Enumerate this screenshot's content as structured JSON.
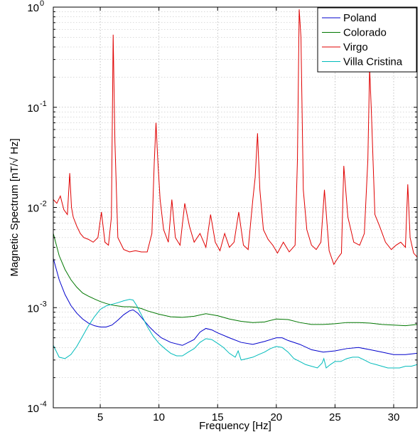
{
  "chart_data": {
    "type": "line",
    "title": "",
    "xlabel": "Frequency [Hz]",
    "ylabel": "Magnetic Spectrum [nT/√ Hz]",
    "xlim": [
      1,
      32
    ],
    "ylim": [
      0.0001,
      1
    ],
    "yscale": "log",
    "grid": true,
    "legend_position": "top-right",
    "x_ticks": [
      5,
      10,
      15,
      20,
      25,
      30
    ],
    "x_tick_labels": [
      "5",
      "10",
      "15",
      "20",
      "25",
      "30"
    ],
    "y_ticks": [
      0.0001,
      0.001,
      0.01,
      0.1,
      1
    ],
    "y_tick_labels": [
      {
        "base": "10",
        "exp": "-4"
      },
      {
        "base": "10",
        "exp": "-3"
      },
      {
        "base": "10",
        "exp": "-2"
      },
      {
        "base": "10",
        "exp": "-1"
      },
      {
        "base": "10",
        "exp": "0"
      }
    ],
    "series": [
      {
        "name": "Poland",
        "color": "#0000cc",
        "x": [
          1,
          1.5,
          2,
          2.5,
          3,
          3.5,
          4,
          4.5,
          5,
          5.5,
          6,
          6.5,
          7,
          7.5,
          7.8,
          8.2,
          8.7,
          9.2,
          9.7,
          10.2,
          11,
          12,
          13,
          13.5,
          14,
          14.5,
          15,
          16,
          17,
          18,
          19,
          20,
          20.5,
          21,
          22,
          23,
          24,
          25,
          26,
          27,
          28,
          29,
          30,
          31,
          32
        ],
        "y": [
          0.0031,
          0.0019,
          0.00135,
          0.00105,
          0.00088,
          0.00077,
          0.0007,
          0.00066,
          0.00064,
          0.00064,
          0.00067,
          0.00075,
          0.00085,
          0.00093,
          0.00095,
          0.00088,
          0.00075,
          0.00064,
          0.00056,
          0.0005,
          0.00045,
          0.00042,
          0.00048,
          0.00057,
          0.00062,
          0.0006,
          0.00056,
          0.0005,
          0.00045,
          0.00043,
          0.00046,
          0.0005,
          0.0005,
          0.00047,
          0.00043,
          0.00038,
          0.00036,
          0.00037,
          0.00039,
          0.0004,
          0.00038,
          0.00036,
          0.00034,
          0.00034,
          0.00035
        ]
      },
      {
        "name": "Colorado",
        "color": "#007700",
        "x": [
          1,
          1.5,
          2,
          2.5,
          3,
          3.5,
          4,
          4.5,
          5,
          5.5,
          6,
          6.5,
          7,
          7.5,
          8,
          8.5,
          9,
          10,
          11,
          12,
          13,
          14,
          15,
          16,
          17,
          18,
          19,
          20,
          21,
          22,
          23,
          24,
          25,
          26,
          27,
          28,
          29,
          30,
          31,
          32
        ],
        "y": [
          0.0055,
          0.0033,
          0.0024,
          0.0019,
          0.0016,
          0.0014,
          0.0013,
          0.00122,
          0.00115,
          0.0011,
          0.00106,
          0.00104,
          0.00102,
          0.00102,
          0.00101,
          0.00098,
          0.00093,
          0.00086,
          0.00081,
          0.0008,
          0.00082,
          0.00087,
          0.00083,
          0.00077,
          0.00073,
          0.00071,
          0.00072,
          0.00077,
          0.00076,
          0.00071,
          0.00068,
          0.00068,
          0.00069,
          0.00071,
          0.00071,
          0.0007,
          0.00068,
          0.00067,
          0.00066,
          0.00068
        ]
      },
      {
        "name": "Virgo",
        "color": "#e00000",
        "x": [
          1,
          1.3,
          1.6,
          1.9,
          2.2,
          2.4,
          2.55,
          2.7,
          3,
          3.3,
          3.6,
          4,
          4.4,
          4.8,
          5.1,
          5.4,
          5.7,
          5.95,
          6.1,
          6.25,
          6.5,
          7,
          7.5,
          8,
          8.5,
          9,
          9.4,
          9.6,
          9.75,
          9.9,
          10.1,
          10.4,
          10.8,
          11.1,
          11.4,
          11.8,
          12.2,
          12.6,
          13,
          13.5,
          14,
          14.4,
          14.8,
          15.2,
          15.6,
          16,
          16.4,
          16.8,
          17.2,
          17.6,
          18,
          18.2,
          18.4,
          18.6,
          18.9,
          19.3,
          19.7,
          20.1,
          20.6,
          21.1,
          21.6,
          21.8,
          21.95,
          22.1,
          22.3,
          22.6,
          23,
          23.4,
          23.8,
          24.1,
          24.5,
          24.9,
          25.3,
          25.55,
          25.75,
          26.1,
          26.6,
          27.1,
          27.5,
          27.8,
          27.95,
          28.1,
          28.4,
          28.8,
          29.3,
          29.8,
          30.2,
          30.6,
          31,
          31.2,
          31.4,
          31.7,
          32
        ],
        "y": [
          0.012,
          0.011,
          0.013,
          0.0095,
          0.0085,
          0.022,
          0.01,
          0.008,
          0.0065,
          0.0055,
          0.005,
          0.0048,
          0.0045,
          0.005,
          0.009,
          0.0045,
          0.0042,
          0.008,
          0.53,
          0.045,
          0.005,
          0.0038,
          0.0036,
          0.0037,
          0.0036,
          0.0036,
          0.0055,
          0.028,
          0.07,
          0.03,
          0.012,
          0.006,
          0.0045,
          0.012,
          0.005,
          0.0042,
          0.011,
          0.0065,
          0.0045,
          0.0055,
          0.004,
          0.0085,
          0.0045,
          0.0037,
          0.0055,
          0.004,
          0.0045,
          0.009,
          0.0042,
          0.0038,
          0.012,
          0.02,
          0.055,
          0.015,
          0.006,
          0.0048,
          0.0042,
          0.0035,
          0.0045,
          0.0036,
          0.0042,
          0.03,
          0.95,
          0.5,
          0.015,
          0.006,
          0.0042,
          0.0038,
          0.0045,
          0.015,
          0.0037,
          0.0027,
          0.0032,
          0.0035,
          0.026,
          0.008,
          0.0045,
          0.0042,
          0.0055,
          0.03,
          0.25,
          0.09,
          0.0085,
          0.0065,
          0.0045,
          0.0038,
          0.0042,
          0.0045,
          0.004,
          0.017,
          0.005,
          0.0035,
          0.0032
        ]
      },
      {
        "name": "Villa Cristina",
        "color": "#00bbbb",
        "x": [
          1,
          1.5,
          2,
          2.5,
          3,
          3.5,
          4,
          4.5,
          5,
          5.5,
          6,
          6.5,
          7,
          7.5,
          7.8,
          8.1,
          8.5,
          9,
          9.5,
          10,
          10.5,
          11,
          11.5,
          12,
          12.5,
          13,
          13.5,
          14,
          14.5,
          15,
          15.5,
          16,
          16.5,
          16.75,
          17,
          17.5,
          18,
          18.5,
          19,
          19.5,
          20,
          20.5,
          21,
          21.5,
          22,
          22.5,
          23,
          23.5,
          23.9,
          24.05,
          24.25,
          24.6,
          25,
          25.5,
          26,
          26.5,
          27,
          27.5,
          28,
          28.5,
          29,
          29.5,
          30,
          30.5,
          31,
          31.5,
          32
        ],
        "y": [
          0.00042,
          0.00032,
          0.00031,
          0.00034,
          0.00041,
          0.00052,
          0.00066,
          0.00081,
          0.00096,
          0.00104,
          0.00108,
          0.00112,
          0.00117,
          0.00121,
          0.00119,
          0.00105,
          0.00085,
          0.00065,
          0.00052,
          0.00044,
          0.00039,
          0.00035,
          0.00033,
          0.00033,
          0.00036,
          0.00039,
          0.00045,
          0.00049,
          0.00048,
          0.00044,
          0.0004,
          0.00035,
          0.00032,
          0.00037,
          0.0003,
          0.00031,
          0.00032,
          0.00034,
          0.00036,
          0.00039,
          0.00041,
          0.0004,
          0.00036,
          0.00031,
          0.00029,
          0.00027,
          0.00026,
          0.00025,
          0.00028,
          0.00031,
          0.00025,
          0.00027,
          0.00029,
          0.00029,
          0.00031,
          0.00032,
          0.00032,
          0.0003,
          0.00028,
          0.00027,
          0.00026,
          0.00025,
          0.00025,
          0.00025,
          0.00026,
          0.00026,
          0.00027
        ]
      }
    ]
  }
}
